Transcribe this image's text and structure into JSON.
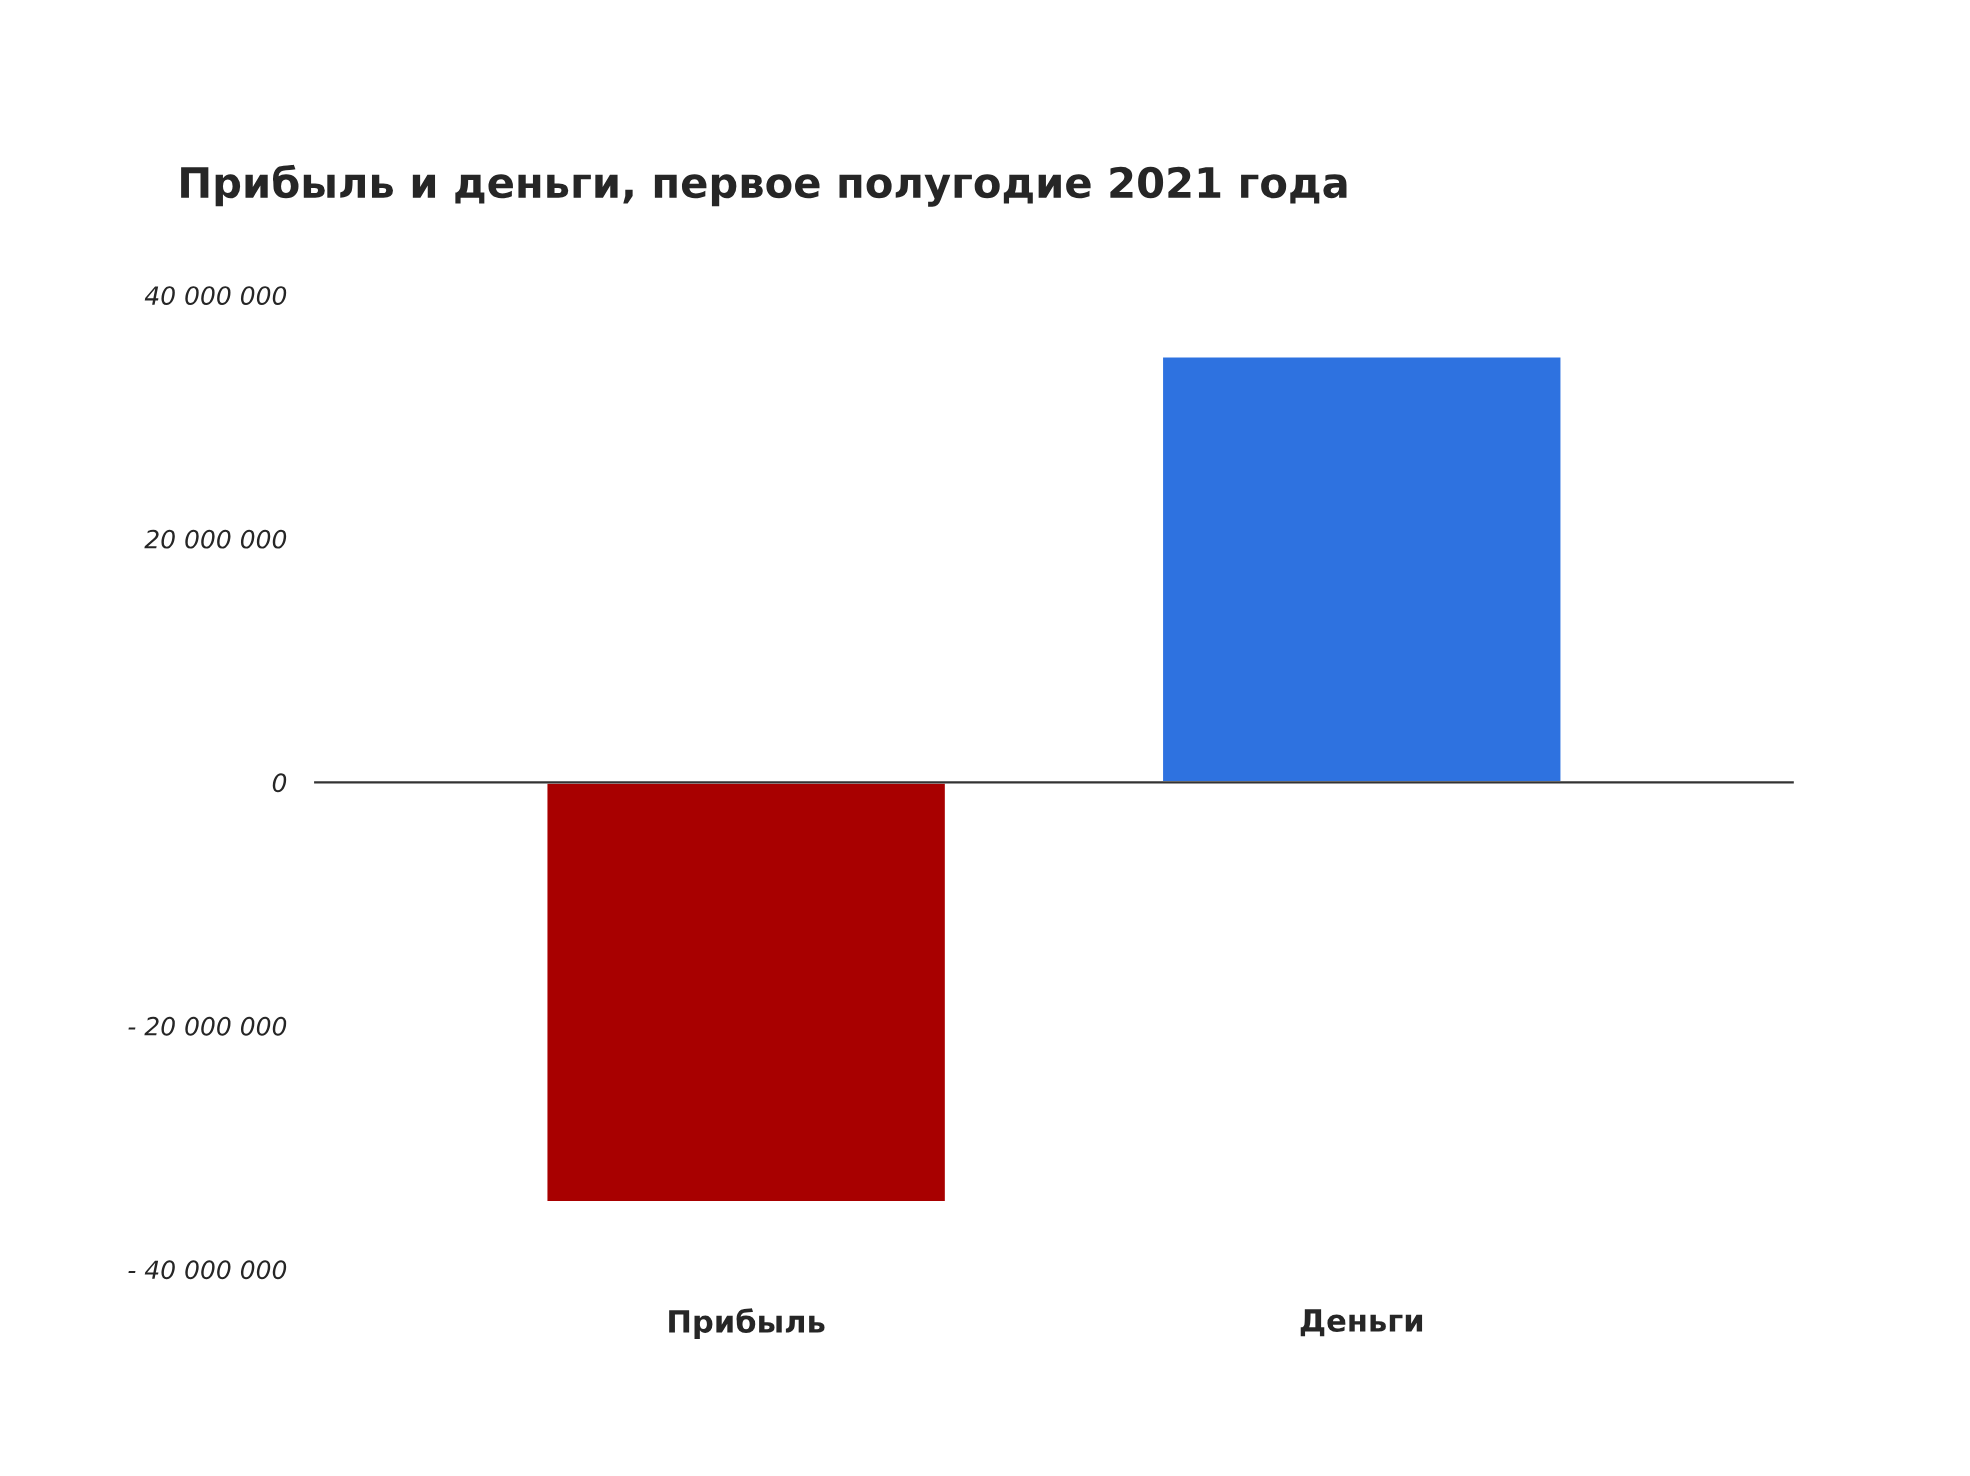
{
  "chart_data": {
    "type": "bar",
    "title": "Прибыль и деньги, первое полугодие 2021 года",
    "categories": [
      "Прибыль",
      "Деньги"
    ],
    "values": [
      -34500000,
      35000000
    ],
    "colors": [
      "#a80000",
      "#2e72e0"
    ],
    "ylim": [
      -40000000,
      40000000
    ],
    "yticks": [
      {
        "value": 40000000,
        "label": "40 000 000"
      },
      {
        "value": 20000000,
        "label": "20 000 000"
      },
      0,
      {
        "value": -20000000,
        "label": "- 20 000 000"
      },
      {
        "value": -40000000,
        "label": "- 40 000 000"
      }
    ],
    "legend": false
  }
}
